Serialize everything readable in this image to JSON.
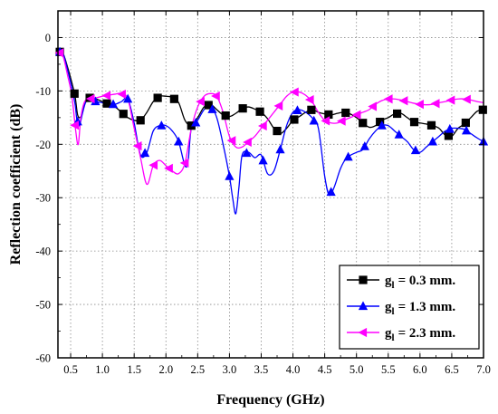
{
  "chart_data": {
    "type": "line",
    "title": "",
    "xlabel": "Frequency (GHz)",
    "ylabel": "Reflection coefficient (dB)",
    "xlim": [
      0.3,
      7.0
    ],
    "ylim": [
      -60,
      5
    ],
    "xticks": [
      "0.5",
      "1.0",
      "1.5",
      "2.0",
      "2.5",
      "3.0",
      "3.5",
      "4.0",
      "4.5",
      "5.0",
      "5.5",
      "6.0",
      "6.5",
      "7.0"
    ],
    "yticks": [
      "0",
      "-10",
      "-20",
      "-30",
      "-40",
      "-50",
      "-60"
    ],
    "grid": true,
    "legend_position": "bottom-right",
    "series": [
      {
        "name": "= 0.3 mm.",
        "label_symbol": "g",
        "label_subscript": "l",
        "color": "#000000",
        "marker": "square",
        "x": [
          0.3,
          0.38,
          0.45,
          0.52,
          0.57,
          0.61,
          0.66,
          0.72,
          0.8,
          0.9,
          1.0,
          1.1,
          1.2,
          1.3,
          1.4,
          1.5,
          1.6,
          1.7,
          1.8,
          1.9,
          2.0,
          2.1,
          2.2,
          2.3,
          2.4,
          2.5,
          2.6,
          2.7,
          2.8,
          2.9,
          3.0,
          3.1,
          3.2,
          3.3,
          3.4,
          3.5,
          3.6,
          3.7,
          3.8,
          3.9,
          4.0,
          4.1,
          4.2,
          4.3,
          4.4,
          4.5,
          4.6,
          4.7,
          4.8,
          4.9,
          5.0,
          5.1,
          5.2,
          5.3,
          5.4,
          5.5,
          5.6,
          5.7,
          5.8,
          5.9,
          6.0,
          6.1,
          6.2,
          6.3,
          6.4,
          6.5,
          6.6,
          6.7,
          6.8,
          6.9,
          7.0
        ],
        "values": [
          -2.5,
          -3.0,
          -5.5,
          -8.5,
          -11.0,
          -14.5,
          -14.8,
          -12.5,
          -11.3,
          -11.5,
          -12.0,
          -12.5,
          -13.0,
          -14.0,
          -15.0,
          -15.5,
          -15.5,
          -14.0,
          -12.0,
          -11.0,
          -11.0,
          -11.2,
          -12.2,
          -15.5,
          -16.5,
          -15.0,
          -13.0,
          -12.5,
          -13.5,
          -14.5,
          -14.8,
          -14.2,
          -13.3,
          -13.0,
          -13.4,
          -14.0,
          -15.2,
          -17.0,
          -18.0,
          -17.0,
          -15.5,
          -14.8,
          -14.0,
          -13.5,
          -14.0,
          -14.3,
          -14.5,
          -14.2,
          -14.0,
          -14.3,
          -15.0,
          -16.0,
          -16.8,
          -16.5,
          -15.5,
          -15.0,
          -14.3,
          -14.2,
          -15.0,
          -15.8,
          -16.0,
          -16.2,
          -16.5,
          -17.0,
          -18.3,
          -18.5,
          -17.0,
          -16.2,
          -15.0,
          -13.8,
          -13.5
        ],
        "markers_x": [
          0.33,
          0.56,
          0.8,
          1.07,
          1.33,
          1.6,
          1.87,
          2.13,
          2.4,
          2.67,
          2.94,
          3.21,
          3.48,
          3.75,
          4.02,
          4.29,
          4.56,
          4.83,
          5.1,
          5.37,
          5.64,
          5.91,
          6.18,
          6.45,
          6.72,
          6.99
        ]
      },
      {
        "name": "= 1.3 mm.",
        "label_symbol": "g",
        "label_subscript": "l",
        "color": "#0000ff",
        "marker": "triangle-up",
        "x": [
          0.3,
          0.38,
          0.45,
          0.52,
          0.57,
          0.6,
          0.64,
          0.68,
          0.74,
          0.8,
          0.9,
          1.0,
          1.1,
          1.2,
          1.3,
          1.4,
          1.5,
          1.6,
          1.7,
          1.8,
          1.9,
          2.0,
          2.1,
          2.2,
          2.3,
          2.35,
          2.4,
          2.5,
          2.6,
          2.7,
          2.8,
          2.9,
          3.0,
          3.05,
          3.1,
          3.15,
          3.2,
          3.3,
          3.4,
          3.5,
          3.6,
          3.7,
          3.8,
          3.9,
          4.0,
          4.1,
          4.2,
          4.3,
          4.4,
          4.5,
          4.57,
          4.65,
          4.75,
          4.85,
          5.0,
          5.1,
          5.2,
          5.3,
          5.4,
          5.5,
          5.6,
          5.7,
          5.8,
          5.9,
          6.0,
          6.1,
          6.2,
          6.3,
          6.4,
          6.5,
          6.6,
          6.7,
          6.8,
          6.9,
          7.0
        ],
        "values": [
          -2.5,
          -3.0,
          -6.0,
          -9.5,
          -12.5,
          -15.5,
          -16.5,
          -14.5,
          -12.0,
          -11.8,
          -12.0,
          -12.2,
          -12.5,
          -12.5,
          -12.0,
          -11.5,
          -16.0,
          -22.0,
          -21.5,
          -17.5,
          -16.5,
          -16.5,
          -17.5,
          -19.5,
          -24.0,
          -23.0,
          -17.0,
          -15.5,
          -13.5,
          -12.8,
          -15.0,
          -20.0,
          -26.0,
          -30.0,
          -33.0,
          -28.0,
          -22.0,
          -21.5,
          -22.5,
          -22.0,
          -25.5,
          -25.0,
          -21.0,
          -16.5,
          -14.0,
          -13.5,
          -14.0,
          -15.0,
          -17.0,
          -26.0,
          -29.5,
          -28.0,
          -24.5,
          -22.5,
          -21.5,
          -21.0,
          -19.0,
          -17.5,
          -16.5,
          -16.5,
          -17.5,
          -18.5,
          -19.5,
          -21.0,
          -21.5,
          -20.5,
          -19.5,
          -18.5,
          -17.5,
          -17.0,
          -17.0,
          -17.2,
          -18.0,
          -18.8,
          -19.5
        ],
        "markers_x": [
          0.33,
          0.61,
          0.89,
          1.17,
          1.4,
          1.67,
          1.93,
          2.2,
          2.47,
          2.73,
          3.0,
          3.27,
          3.53,
          3.8,
          4.07,
          4.33,
          4.6,
          4.87,
          5.13,
          5.4,
          5.67,
          5.93,
          6.2,
          6.47,
          6.73,
          7.0
        ]
      },
      {
        "name": "= 2.3 mm.",
        "label_symbol": "g",
        "label_subscript": "l",
        "color": "#ff00ff",
        "marker": "triangle-left",
        "x": [
          0.3,
          0.38,
          0.45,
          0.52,
          0.58,
          0.62,
          0.66,
          0.72,
          0.8,
          0.9,
          1.0,
          1.1,
          1.2,
          1.3,
          1.4,
          1.5,
          1.6,
          1.7,
          1.8,
          1.9,
          2.0,
          2.1,
          2.2,
          2.3,
          2.4,
          2.5,
          2.6,
          2.7,
          2.8,
          2.9,
          3.0,
          3.1,
          3.2,
          3.3,
          3.4,
          3.5,
          3.6,
          3.7,
          3.8,
          3.9,
          4.0,
          4.1,
          4.2,
          4.3,
          4.4,
          4.5,
          4.6,
          4.7,
          4.8,
          4.9,
          5.0,
          5.1,
          5.2,
          5.3,
          5.4,
          5.5,
          5.6,
          5.7,
          5.8,
          5.9,
          6.0,
          6.1,
          6.2,
          6.3,
          6.4,
          6.5,
          6.6,
          6.7,
          6.8,
          6.9,
          7.0
        ],
        "values": [
          -2.5,
          -3.5,
          -7.0,
          -11.0,
          -17.5,
          -20.0,
          -15.0,
          -12.0,
          -11.5,
          -11.3,
          -11.0,
          -10.8,
          -10.6,
          -10.5,
          -11.5,
          -17.0,
          -22.5,
          -27.5,
          -24.0,
          -23.0,
          -24.0,
          -25.0,
          -25.5,
          -23.5,
          -17.0,
          -13.0,
          -11.0,
          -10.5,
          -11.0,
          -14.0,
          -18.5,
          -20.5,
          -20.5,
          -19.5,
          -18.5,
          -17.0,
          -15.5,
          -14.0,
          -12.5,
          -11.0,
          -10.2,
          -10.2,
          -10.8,
          -12.0,
          -14.0,
          -15.5,
          -16.0,
          -16.0,
          -15.5,
          -15.0,
          -14.5,
          -14.0,
          -13.5,
          -12.5,
          -11.8,
          -11.5,
          -11.5,
          -11.7,
          -12.0,
          -12.3,
          -12.5,
          -12.6,
          -12.5,
          -12.2,
          -12.0,
          -11.7,
          -11.5,
          -11.5,
          -11.7,
          -12.0,
          -12.2
        ],
        "markers_x": [
          0.33,
          0.57,
          0.82,
          1.07,
          1.31,
          1.56,
          1.81,
          2.05,
          2.3,
          2.55,
          2.79,
          3.04,
          3.29,
          3.53,
          3.78,
          4.03,
          4.27,
          4.52,
          4.77,
          5.01,
          5.26,
          5.51,
          5.75,
          6.0,
          6.25,
          6.49,
          6.74
        ]
      }
    ]
  }
}
